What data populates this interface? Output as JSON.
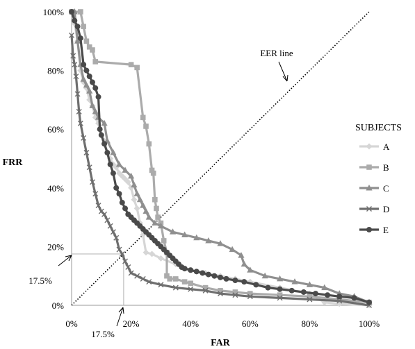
{
  "chart_data": {
    "type": "line",
    "xlabel": "FAR",
    "ylabel": "FRR",
    "xlim": [
      0,
      100
    ],
    "ylim": [
      0,
      100
    ],
    "x_ticks": [
      "0%",
      "20%",
      "40%",
      "60%",
      "80%",
      "100%"
    ],
    "y_ticks": [
      "0%",
      "20%",
      "40%",
      "60%",
      "80%",
      "100%"
    ],
    "legend_title": "SUBJECTS",
    "legend_position": "right",
    "eer_label": "EER line",
    "eer_x_label": "17.5%",
    "eer_y_label": "17.5%",
    "eer_value": 17.5,
    "series": [
      {
        "name": "A",
        "color": "#d6d6d6",
        "marker": "diamond",
        "points": [
          [
            0.5,
            100
          ],
          [
            1,
            96
          ],
          [
            2,
            90
          ],
          [
            3,
            80
          ],
          [
            4,
            76
          ],
          [
            5,
            74
          ],
          [
            6,
            70
          ],
          [
            7,
            68
          ],
          [
            8,
            64
          ],
          [
            9,
            62
          ],
          [
            10,
            58
          ],
          [
            11,
            56
          ],
          [
            12,
            52
          ],
          [
            13,
            50
          ],
          [
            14,
            48
          ],
          [
            15,
            47
          ],
          [
            16,
            45
          ],
          [
            17,
            44
          ],
          [
            18,
            43
          ],
          [
            19,
            42
          ],
          [
            20,
            40
          ],
          [
            21,
            36
          ],
          [
            22,
            33
          ],
          [
            23,
            28
          ],
          [
            24,
            24
          ],
          [
            25,
            18
          ],
          [
            27,
            17.5
          ],
          [
            30,
            16
          ],
          [
            35,
            14
          ],
          [
            40,
            12
          ],
          [
            45,
            11
          ],
          [
            50,
            10
          ],
          [
            55,
            9
          ],
          [
            60,
            8
          ],
          [
            70,
            6
          ],
          [
            80,
            4
          ],
          [
            85,
            1
          ],
          [
            90,
            0.5
          ],
          [
            100,
            0
          ]
        ]
      },
      {
        "name": "B",
        "color": "#ababab",
        "marker": "square",
        "points": [
          [
            0,
            100
          ],
          [
            3,
            100
          ],
          [
            4,
            95
          ],
          [
            5,
            90
          ],
          [
            6,
            88
          ],
          [
            7,
            87
          ],
          [
            8,
            83
          ],
          [
            20,
            82
          ],
          [
            22,
            81
          ],
          [
            24,
            64
          ],
          [
            25,
            61
          ],
          [
            26,
            55
          ],
          [
            27,
            46
          ],
          [
            27.5,
            45
          ],
          [
            28,
            36
          ],
          [
            28.5,
            33
          ],
          [
            29,
            30
          ],
          [
            30,
            28
          ],
          [
            31,
            22
          ],
          [
            32,
            18
          ],
          [
            32,
            10
          ],
          [
            33,
            9
          ],
          [
            35,
            9
          ],
          [
            38,
            8
          ],
          [
            40,
            7.5
          ],
          [
            45,
            6
          ],
          [
            50,
            5
          ],
          [
            55,
            4.5
          ],
          [
            60,
            4
          ],
          [
            70,
            3.5
          ],
          [
            80,
            3
          ],
          [
            90,
            2
          ],
          [
            100,
            1
          ]
        ]
      },
      {
        "name": "C",
        "color": "#8f8f8f",
        "marker": "triangle",
        "points": [
          [
            1,
            100
          ],
          [
            2,
            90
          ],
          [
            3,
            82
          ],
          [
            4,
            77
          ],
          [
            5,
            75
          ],
          [
            6,
            73
          ],
          [
            7,
            68
          ],
          [
            8,
            66
          ],
          [
            9,
            64
          ],
          [
            11,
            62
          ],
          [
            12,
            56
          ],
          [
            14,
            52
          ],
          [
            16,
            48
          ],
          [
            18,
            46
          ],
          [
            20,
            44
          ],
          [
            21,
            41
          ],
          [
            22,
            38
          ],
          [
            23,
            36
          ],
          [
            24,
            34
          ],
          [
            25,
            32
          ],
          [
            26,
            30
          ],
          [
            28,
            28
          ],
          [
            30,
            27
          ],
          [
            34,
            25
          ],
          [
            38,
            24
          ],
          [
            42,
            23
          ],
          [
            46,
            22
          ],
          [
            50,
            21
          ],
          [
            54,
            19
          ],
          [
            57,
            17
          ],
          [
            58,
            14
          ],
          [
            60,
            12
          ],
          [
            65,
            10
          ],
          [
            70,
            9
          ],
          [
            75,
            8
          ],
          [
            80,
            7
          ],
          [
            85,
            6
          ],
          [
            90,
            4
          ],
          [
            95,
            3
          ],
          [
            100,
            1
          ]
        ]
      },
      {
        "name": "D",
        "color": "#6e6e6e",
        "marker": "x",
        "points": [
          [
            0,
            92
          ],
          [
            0.5,
            85
          ],
          [
            1,
            82
          ],
          [
            1.5,
            78
          ],
          [
            2,
            72
          ],
          [
            2.5,
            66
          ],
          [
            3,
            62
          ],
          [
            4,
            57
          ],
          [
            5,
            52
          ],
          [
            6,
            47
          ],
          [
            7,
            42
          ],
          [
            8,
            38
          ],
          [
            9,
            34
          ],
          [
            10,
            32
          ],
          [
            11,
            31
          ],
          [
            12,
            29
          ],
          [
            13,
            27
          ],
          [
            14,
            25
          ],
          [
            15,
            23
          ],
          [
            16,
            19
          ],
          [
            17,
            17.5
          ],
          [
            18,
            15
          ],
          [
            19,
            13
          ],
          [
            20,
            11
          ],
          [
            22,
            10
          ],
          [
            24,
            9
          ],
          [
            26,
            8
          ],
          [
            30,
            7
          ],
          [
            35,
            6
          ],
          [
            40,
            5.5
          ],
          [
            45,
            5
          ],
          [
            50,
            4
          ],
          [
            55,
            3.5
          ],
          [
            60,
            3
          ],
          [
            70,
            2.5
          ],
          [
            80,
            2
          ],
          [
            90,
            1.5
          ],
          [
            100,
            0
          ]
        ]
      },
      {
        "name": "E",
        "color": "#4a4a4a",
        "marker": "circle",
        "points": [
          [
            0,
            100
          ],
          [
            1,
            97
          ],
          [
            2,
            95
          ],
          [
            3,
            91
          ],
          [
            4,
            82
          ],
          [
            5,
            80
          ],
          [
            6,
            78
          ],
          [
            7,
            76
          ],
          [
            8,
            74
          ],
          [
            9,
            71
          ],
          [
            9.5,
            60
          ],
          [
            10,
            58
          ],
          [
            11,
            55
          ],
          [
            12,
            52
          ],
          [
            13,
            48
          ],
          [
            14,
            45
          ],
          [
            15,
            40
          ],
          [
            16,
            38
          ],
          [
            17,
            35
          ],
          [
            18,
            33
          ],
          [
            19,
            31
          ],
          [
            20,
            30
          ],
          [
            21,
            29
          ],
          [
            22,
            28
          ],
          [
            23,
            27
          ],
          [
            24,
            26
          ],
          [
            25,
            25
          ],
          [
            26,
            24
          ],
          [
            27,
            23
          ],
          [
            28,
            22
          ],
          [
            29,
            21
          ],
          [
            30,
            20
          ],
          [
            31,
            19
          ],
          [
            32,
            18
          ],
          [
            33,
            17
          ],
          [
            34,
            16
          ],
          [
            35,
            15
          ],
          [
            36,
            14
          ],
          [
            37,
            13
          ],
          [
            38,
            12.5
          ],
          [
            40,
            12
          ],
          [
            42,
            11.5
          ],
          [
            44,
            11
          ],
          [
            46,
            10.5
          ],
          [
            48,
            10
          ],
          [
            50,
            9.5
          ],
          [
            52,
            9
          ],
          [
            55,
            8.5
          ],
          [
            58,
            8
          ],
          [
            62,
            7
          ],
          [
            66,
            6
          ],
          [
            70,
            5.5
          ],
          [
            74,
            5
          ],
          [
            78,
            4.5
          ],
          [
            82,
            4
          ],
          [
            86,
            3.5
          ],
          [
            90,
            3
          ],
          [
            95,
            2.5
          ],
          [
            100,
            1
          ]
        ]
      }
    ]
  }
}
